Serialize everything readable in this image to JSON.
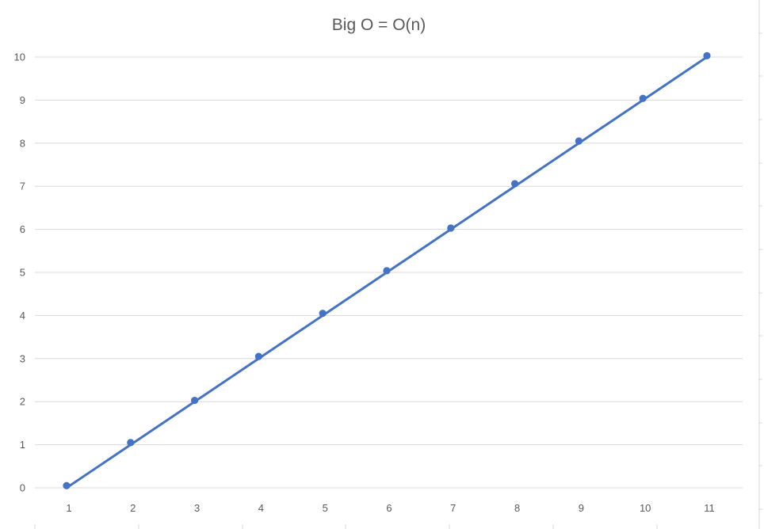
{
  "chart_data": {
    "type": "scatter",
    "title": "Big O = O(n)",
    "xlabel": "",
    "ylabel": "",
    "x": [
      1,
      2,
      3,
      4,
      5,
      6,
      7,
      8,
      9,
      10,
      11
    ],
    "categories": [
      "1",
      "2",
      "3",
      "4",
      "5",
      "6",
      "7",
      "8",
      "9",
      "10",
      "11"
    ],
    "series": [
      {
        "values": [
          0.05,
          1.05,
          2.03,
          3.05,
          4.05,
          5.04,
          6.03,
          7.06,
          8.05,
          9.04,
          10.03
        ]
      }
    ],
    "trendline": {
      "type": "linear",
      "from": [
        1,
        0
      ],
      "to": [
        11,
        10
      ]
    },
    "ylim": [
      0,
      10
    ],
    "yticks": [
      0,
      1,
      2,
      3,
      4,
      5,
      6,
      7,
      8,
      9,
      10
    ],
    "grid": true,
    "legend": "none",
    "colors": {
      "series": "#4472c4",
      "grid": "#d9d9d9",
      "text": "#595959"
    }
  }
}
